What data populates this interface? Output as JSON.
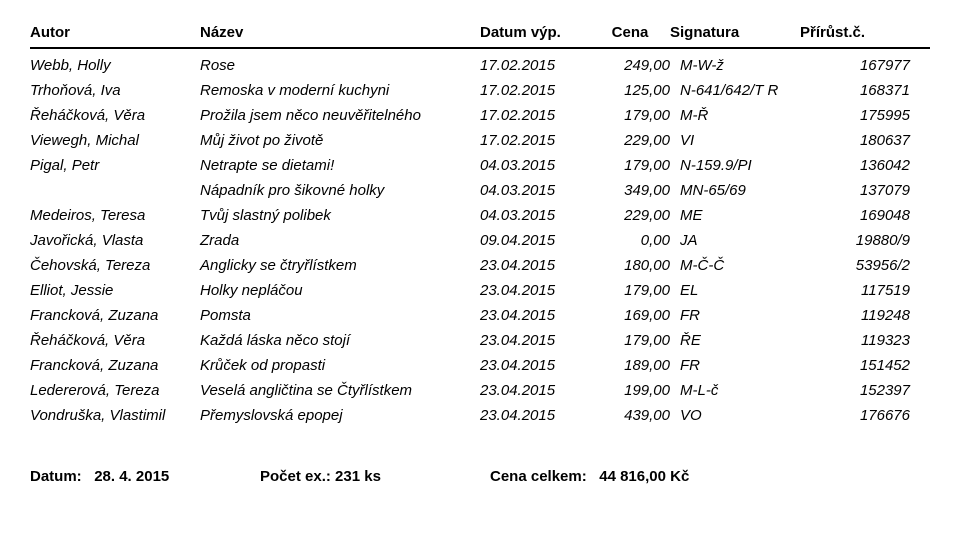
{
  "header": {
    "author": "Autor",
    "title": "Název",
    "date": "Datum výp.",
    "price": "Cena",
    "signature": "Signatura",
    "accession": "Přírůst.č."
  },
  "rows": [
    {
      "author": "Webb, Holly",
      "title": "Rose",
      "date": "17.02.2015",
      "price": "249,00",
      "signature": "M-W-ž",
      "accession": "167977"
    },
    {
      "author": "Trhoňová, Iva",
      "title": "Remoska v moderní kuchyni",
      "date": "17.02.2015",
      "price": "125,00",
      "signature": "N-641/642/T R",
      "accession": "168371"
    },
    {
      "author": "Řeháčková, Věra",
      "title": "Prožila jsem něco neuvěřitelného",
      "date": "17.02.2015",
      "price": "179,00",
      "signature": "M-Ř",
      "accession": "175995"
    },
    {
      "author": "Viewegh, Michal",
      "title": "Můj život po životě",
      "date": "17.02.2015",
      "price": "229,00",
      "signature": "VI",
      "accession": "180637"
    },
    {
      "author": "Pigal, Petr",
      "title": "Netrapte se dietami!",
      "date": "04.03.2015",
      "price": "179,00",
      "signature": "N-159.9/PI",
      "accession": "136042"
    },
    {
      "author": "",
      "title": "Nápadník pro šikovné holky",
      "date": "04.03.2015",
      "price": "349,00",
      "signature": "MN-65/69",
      "accession": "137079"
    },
    {
      "author": "Medeiros, Teresa",
      "title": "Tvůj slastný polibek",
      "date": "04.03.2015",
      "price": "229,00",
      "signature": "ME",
      "accession": "169048"
    },
    {
      "author": "Javořická, Vlasta",
      "title": "Zrada",
      "date": "09.04.2015",
      "price": "0,00",
      "signature": "JA",
      "accession": "19880/9"
    },
    {
      "author": "Čehovská, Tereza",
      "title": "Anglicky se čtryřlístkem",
      "date": "23.04.2015",
      "price": "180,00",
      "signature": "M-Č-Č",
      "accession": "53956/2"
    },
    {
      "author": "Elliot, Jessie",
      "title": "Holky nepláčou",
      "date": "23.04.2015",
      "price": "179,00",
      "signature": "EL",
      "accession": "117519"
    },
    {
      "author": "Francková, Zuzana",
      "title": "Pomsta",
      "date": "23.04.2015",
      "price": "169,00",
      "signature": "FR",
      "accession": "119248"
    },
    {
      "author": "Řeháčková, Věra",
      "title": "Každá láska něco stojí",
      "date": "23.04.2015",
      "price": "179,00",
      "signature": "ŘE",
      "accession": "119323"
    },
    {
      "author": "Francková, Zuzana",
      "title": "Krůček od propasti",
      "date": "23.04.2015",
      "price": "189,00",
      "signature": "FR",
      "accession": "151452"
    },
    {
      "author": "Ledererová, Tereza",
      "title": "Veselá angličtina se Čtyřlístkem",
      "date": "23.04.2015",
      "price": "199,00",
      "signature": "M-L-č",
      "accession": "152397"
    },
    {
      "author": "Vondruška, Vlastimil",
      "title": "Přemyslovská epopej",
      "date": "23.04.2015",
      "price": "439,00",
      "signature": "VO",
      "accession": "176676"
    }
  ],
  "footer": {
    "date_label": "Datum:",
    "date_value": "28. 4. 2015",
    "count_label": "Počet ex.:",
    "count_value": "231 ks",
    "total_label": "Cena celkem:",
    "total_value": "44 816,00 Kč"
  }
}
